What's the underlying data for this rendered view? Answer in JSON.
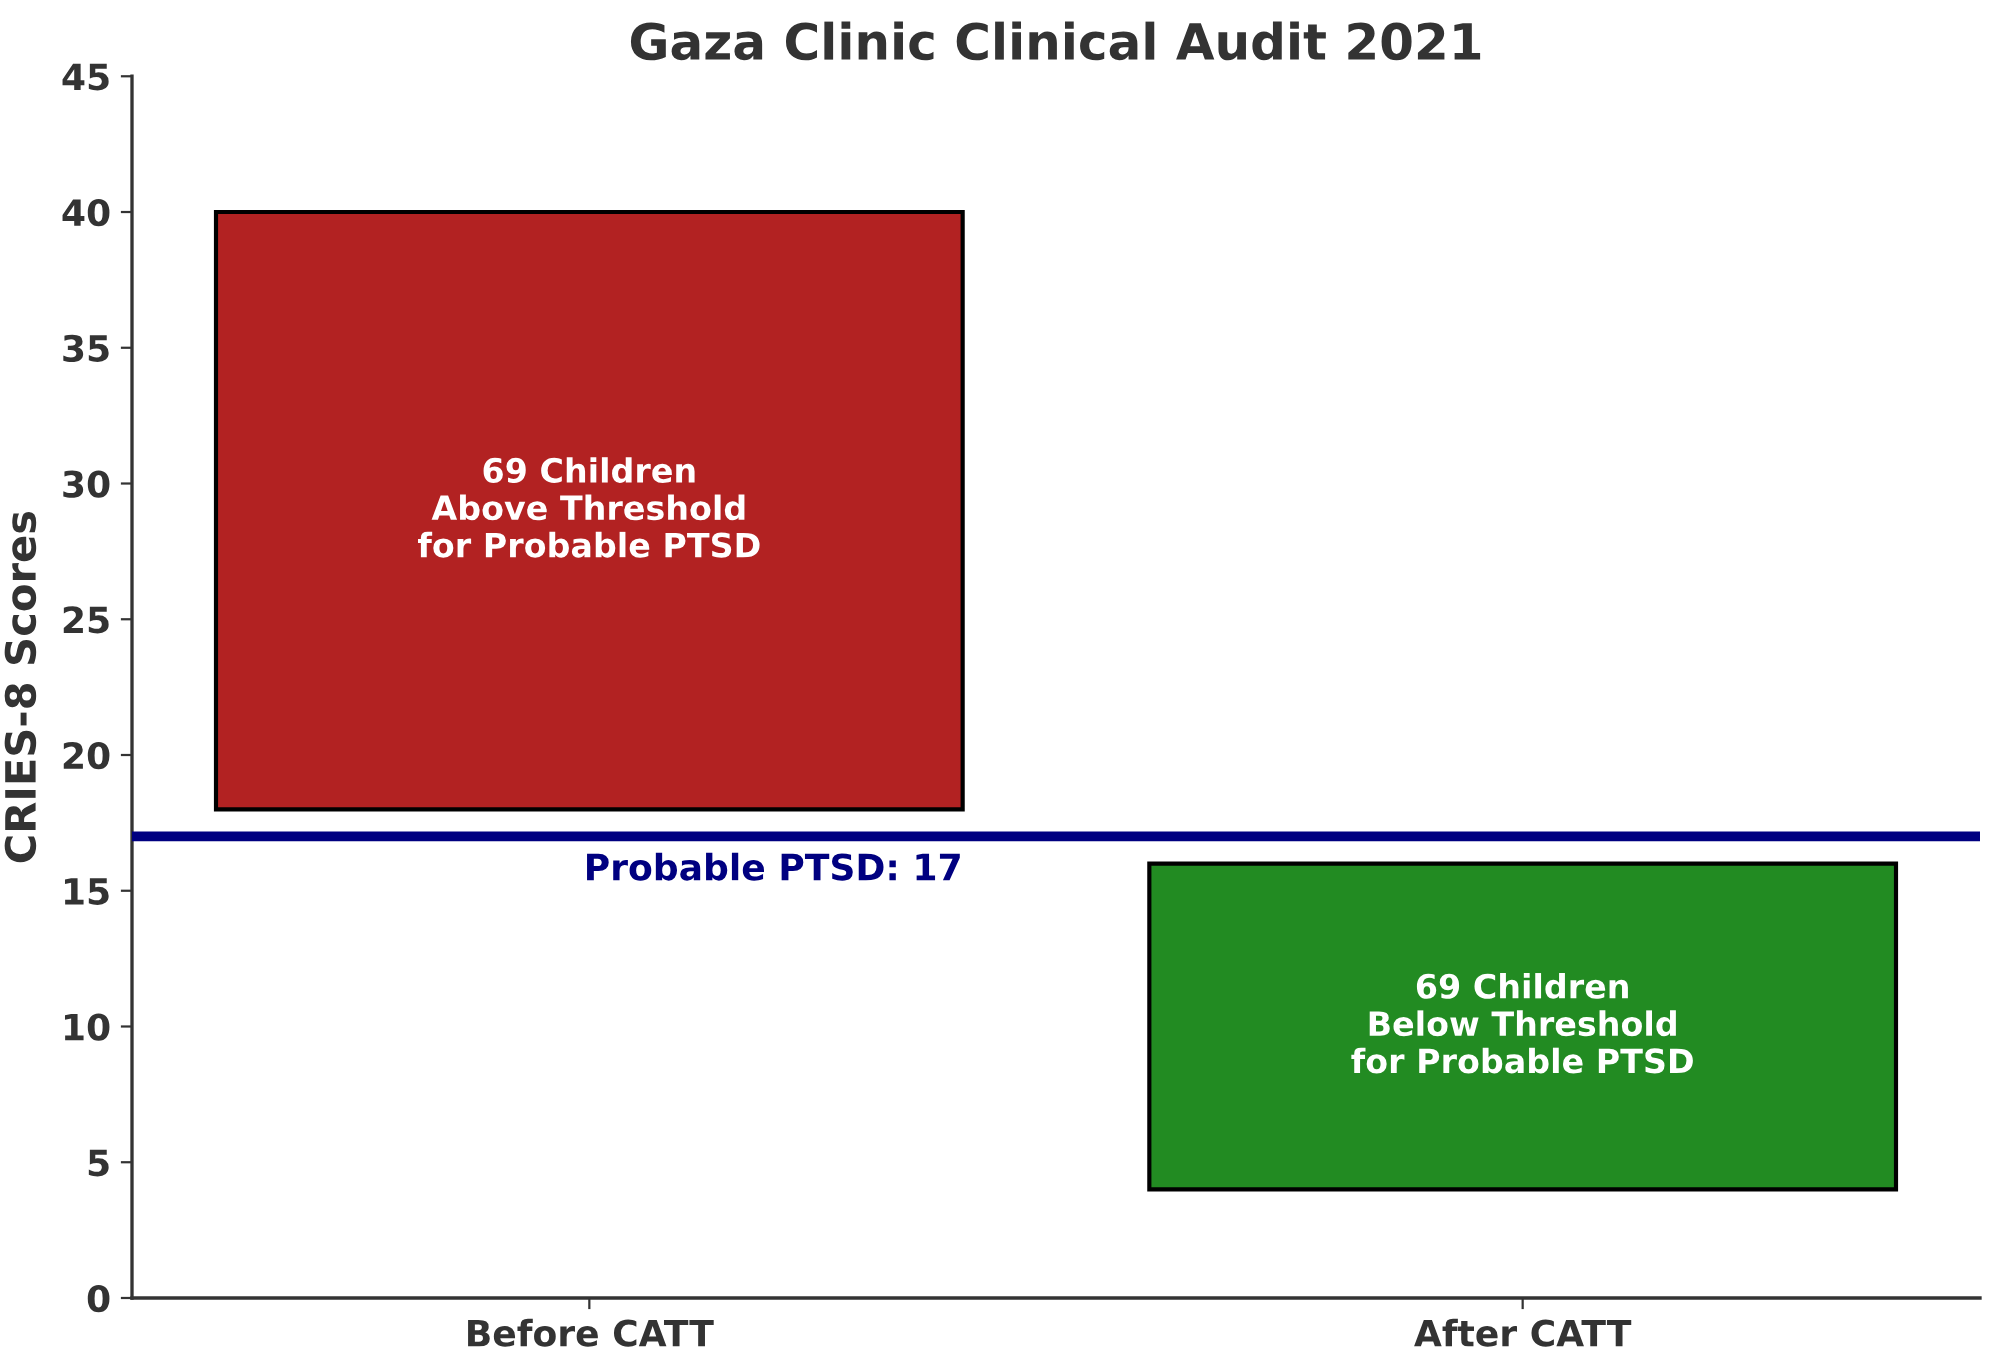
{
  "chart_data": {
    "type": "bar",
    "title": "Gaza Clinic Clinical Audit 2021",
    "ylabel": "CRIES-8 Scores",
    "categories": [
      "Before CATT",
      "After CATT"
    ],
    "base": [
      18,
      4
    ],
    "values": [
      22,
      12
    ],
    "colors": [
      "#b22222",
      "#228b22"
    ],
    "ylim": [
      0,
      45
    ],
    "yticks": [
      0,
      5,
      10,
      15,
      20,
      25,
      30,
      35,
      40,
      45
    ],
    "ref_lines": [
      {
        "axis": "y",
        "value": 17,
        "label": "Probable PTSD: 17",
        "color": "#000080",
        "line_style": "solid"
      }
    ],
    "annotations": [
      "69 Children\nAbove Threshold\nfor Probable PTSD",
      "69 Children\nBelow Threshold\nfor Probable PTSD"
    ]
  }
}
